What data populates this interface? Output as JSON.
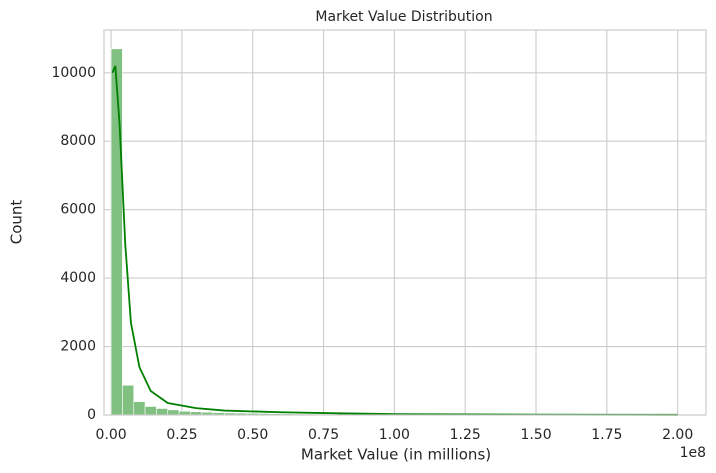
{
  "chart_data": {
    "type": "histogram",
    "title": "Market Value Distribution",
    "x_label": "Market Value (in millions)",
    "y_label": "Count",
    "x_offset_label": "1e8",
    "bins": [
      0,
      4000000,
      8000000,
      12000000,
      16000000,
      20000000,
      24000000,
      28000000,
      32000000,
      36000000,
      40000000,
      44000000,
      48000000,
      52000000,
      56000000,
      60000000,
      64000000,
      68000000,
      72000000,
      76000000,
      80000000,
      84000000,
      88000000,
      92000000,
      96000000,
      100000000,
      104000000,
      108000000,
      112000000,
      116000000,
      120000000,
      124000000,
      128000000,
      132000000,
      136000000,
      140000000,
      144000000,
      148000000,
      152000000,
      156000000,
      160000000,
      164000000,
      168000000,
      172000000,
      176000000,
      180000000,
      184000000,
      188000000,
      192000000,
      196000000,
      200000000
    ],
    "values": [
      10700,
      870,
      390,
      250,
      190,
      150,
      110,
      95,
      80,
      70,
      60,
      55,
      50,
      45,
      40,
      35,
      30,
      28,
      25,
      22,
      40,
      30,
      18,
      15,
      12,
      10,
      10,
      8,
      8,
      6,
      5,
      5,
      4,
      4,
      3,
      3,
      3,
      2,
      2,
      2,
      2,
      1,
      1,
      1,
      1,
      1,
      1,
      1,
      1,
      2
    ],
    "color": "#80c080",
    "kde": {
      "color": "#008000",
      "x": [
        500000,
        1500000,
        3000000,
        5000000,
        7000000,
        10000000,
        14000000,
        20000000,
        30000000,
        40000000,
        60000000,
        80000000,
        100000000,
        150000000,
        200000000
      ],
      "y": [
        10000,
        10200,
        8500,
        5000,
        2700,
        1400,
        700,
        350,
        200,
        130,
        80,
        50,
        25,
        10,
        5
      ]
    },
    "xlim": [
      -2500000,
      210000000
    ],
    "ylim": [
      0,
      11250
    ],
    "xticks": [
      {
        "value": 0,
        "label": "0.00"
      },
      {
        "value": 25000000,
        "label": "0.25"
      },
      {
        "value": 50000000,
        "label": "0.50"
      },
      {
        "value": 75000000,
        "label": "0.75"
      },
      {
        "value": 100000000,
        "label": "1.00"
      },
      {
        "value": 125000000,
        "label": "1.25"
      },
      {
        "value": 150000000,
        "label": "1.50"
      },
      {
        "value": 175000000,
        "label": "1.75"
      },
      {
        "value": 200000000,
        "label": "2.00"
      }
    ],
    "yticks": [
      0,
      2000,
      4000,
      6000,
      8000,
      10000
    ],
    "grid": true
  }
}
